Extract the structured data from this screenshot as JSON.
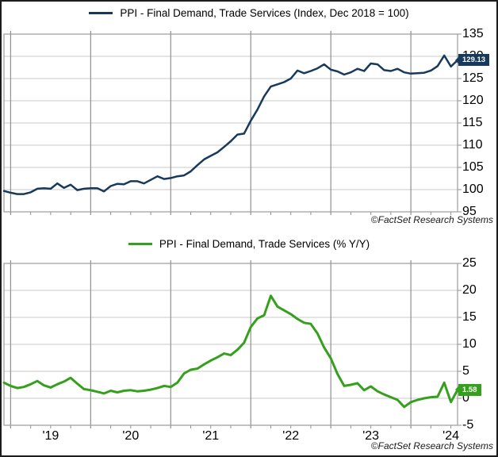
{
  "attribution": "©FactSet Research Systems",
  "x_axis": {
    "tick_labels": [
      "'19",
      "'20",
      "'21",
      "'22",
      "'23",
      "'24"
    ]
  },
  "chart_data": [
    {
      "type": "line",
      "title": "PPI - Final Demand, Trade Services (Index, Dec 2018 = 100)",
      "legend_position": "top-center",
      "frequency": "monthly",
      "ylim": [
        95,
        135
      ],
      "y_ticks": [
        135,
        130,
        125,
        120,
        115,
        110,
        105,
        100,
        95
      ],
      "x_tick_labels": [
        "'19",
        "'20",
        "'21",
        "'22",
        "'23",
        "'24"
      ],
      "grid": {
        "horizontal": true,
        "vertical": "yearly"
      },
      "line_color": "#17395B",
      "last_value": 129.13,
      "last_value_label": "129.13",
      "values": [
        99.7,
        99.3,
        99.0,
        99.0,
        99.4,
        100.2,
        100.3,
        100.2,
        101.4,
        100.4,
        101.1,
        99.9,
        100.2,
        100.3,
        100.3,
        99.6,
        100.8,
        101.3,
        101.2,
        101.9,
        101.9,
        101.4,
        102.2,
        103.0,
        102.4,
        102.6,
        103.0,
        103.2,
        104.1,
        105.5,
        106.8,
        107.6,
        108.4,
        109.6,
        110.9,
        112.4,
        112.6,
        115.5,
        118.0,
        121.0,
        123.2,
        123.7,
        124.2,
        125.0,
        126.8,
        126.2,
        126.7,
        127.3,
        128.2,
        127.0,
        126.6,
        125.9,
        126.4,
        127.2,
        126.7,
        128.4,
        128.2,
        126.9,
        126.7,
        127.2,
        126.4,
        126.1,
        126.2,
        126.3,
        126.8,
        127.8,
        130.2,
        127.7,
        129.13
      ]
    },
    {
      "type": "line",
      "title": "PPI - Final Demand, Trade Services (% Y/Y)",
      "legend_position": "top-center",
      "frequency": "monthly",
      "ylim": [
        -5,
        25
      ],
      "y_ticks": [
        25,
        20,
        15,
        10,
        5,
        0,
        -5
      ],
      "x_tick_labels": [
        "'19",
        "'20",
        "'21",
        "'22",
        "'23",
        "'24"
      ],
      "grid": {
        "horizontal": true,
        "vertical": "yearly"
      },
      "line_color": "#35A01C",
      "last_value": 1.58,
      "last_value_label": "1.58",
      "values": [
        2.9,
        2.3,
        1.9,
        2.1,
        2.6,
        3.2,
        2.4,
        2.0,
        2.6,
        3.1,
        3.8,
        2.7,
        1.7,
        1.5,
        1.2,
        0.9,
        1.4,
        1.1,
        1.4,
        1.5,
        1.3,
        1.4,
        1.6,
        1.9,
        2.3,
        2.1,
        2.9,
        4.6,
        5.3,
        5.5,
        6.3,
        7.0,
        7.6,
        8.3,
        8.0,
        9.0,
        10.3,
        13.2,
        14.8,
        15.4,
        19.0,
        17.0,
        16.3,
        15.6,
        14.7,
        14.0,
        13.8,
        12.0,
        9.4,
        7.4,
        4.5,
        2.3,
        2.5,
        2.8,
        1.5,
        2.2,
        1.3,
        0.7,
        0.2,
        -0.3,
        -1.6,
        -0.7,
        -0.3,
        0.0,
        0.2,
        0.3,
        2.9,
        -0.7,
        1.58
      ]
    }
  ]
}
